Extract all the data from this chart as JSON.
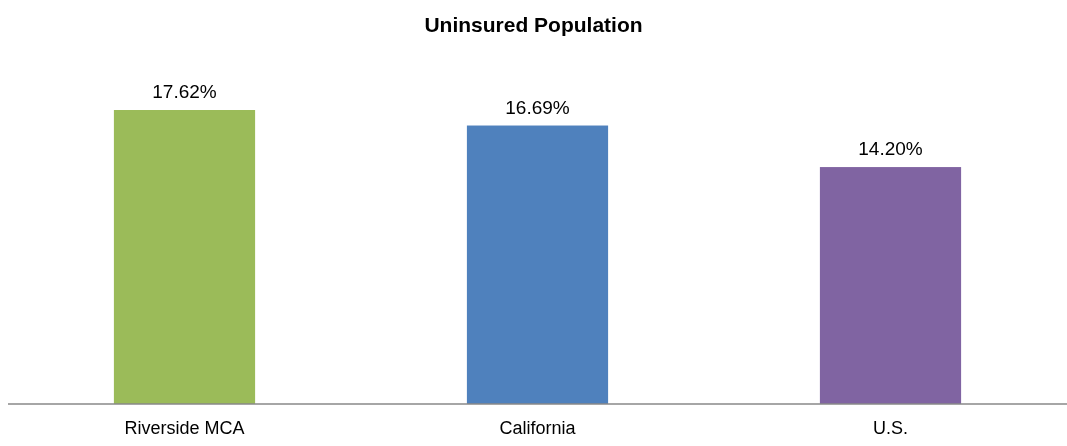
{
  "chart_data": {
    "type": "bar",
    "title": "Uninsured Population",
    "categories": [
      "Riverside MCA",
      "California",
      "U.S."
    ],
    "values": [
      17.62,
      16.69,
      14.2
    ],
    "colors": [
      "#9bbb59",
      "#4f81bd",
      "#8064a2"
    ],
    "value_labels": [
      "17.62%",
      "16.69%",
      "14.20%"
    ],
    "tick_labels": "x"
  }
}
